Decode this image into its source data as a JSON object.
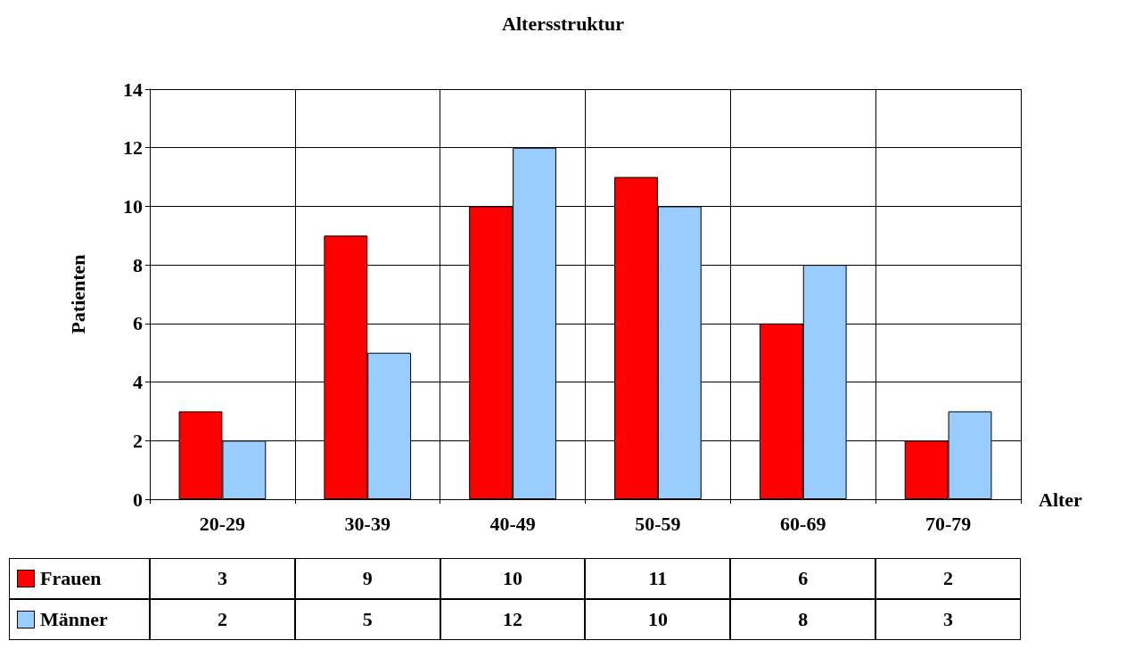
{
  "chart_data": {
    "type": "bar",
    "title": "Altersstruktur",
    "xlabel": "Alter",
    "ylabel": "Patienten",
    "categories": [
      "20-29",
      "30-39",
      "40-49",
      "50-59",
      "60-69",
      "70-79"
    ],
    "series": [
      {
        "name": "Frauen",
        "color": "#ff0000",
        "values": [
          3,
          9,
          10,
          11,
          6,
          2
        ]
      },
      {
        "name": "Männer",
        "color": "#99ccff",
        "values": [
          2,
          5,
          12,
          10,
          8,
          3
        ]
      }
    ],
    "ylim": [
      0,
      14
    ],
    "yticks": [
      0,
      2,
      4,
      6,
      8,
      10,
      12,
      14
    ],
    "grid": true,
    "legend": "bottom",
    "data_labels": true
  }
}
